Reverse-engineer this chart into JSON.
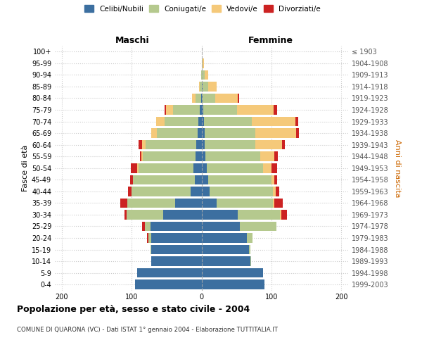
{
  "age_groups": [
    "0-4",
    "5-9",
    "10-14",
    "15-19",
    "20-24",
    "25-29",
    "30-34",
    "35-39",
    "40-44",
    "45-49",
    "50-54",
    "55-59",
    "60-64",
    "65-69",
    "70-74",
    "75-79",
    "80-84",
    "85-89",
    "90-94",
    "95-99",
    "100+"
  ],
  "birth_years": [
    "1999-2003",
    "1994-1998",
    "1989-1993",
    "1984-1988",
    "1979-1983",
    "1974-1978",
    "1969-1973",
    "1964-1968",
    "1959-1963",
    "1954-1958",
    "1949-1953",
    "1944-1948",
    "1939-1943",
    "1934-1938",
    "1929-1933",
    "1924-1928",
    "1919-1923",
    "1914-1918",
    "1909-1913",
    "1904-1908",
    "≤ 1903"
  ],
  "colors": {
    "celibi": "#3c6fa0",
    "coniugati": "#b5c98e",
    "vedovi": "#f5c97a",
    "divorziati": "#cc2222"
  },
  "males": {
    "celibi": [
      95,
      92,
      72,
      72,
      72,
      73,
      55,
      38,
      16,
      10,
      12,
      9,
      8,
      6,
      5,
      3,
      1,
      0,
      0,
      0,
      0
    ],
    "coniugati": [
      0,
      0,
      0,
      1,
      4,
      8,
      52,
      68,
      84,
      88,
      78,
      75,
      72,
      58,
      48,
      38,
      8,
      3,
      1,
      0,
      0
    ],
    "vedovi": [
      0,
      0,
      0,
      0,
      0,
      0,
      0,
      0,
      0,
      0,
      2,
      2,
      5,
      8,
      12,
      10,
      5,
      1,
      0,
      0,
      0
    ],
    "divorziati": [
      0,
      0,
      0,
      0,
      2,
      4,
      3,
      10,
      5,
      4,
      9,
      2,
      5,
      0,
      0,
      2,
      0,
      0,
      0,
      0,
      0
    ]
  },
  "females": {
    "celibi": [
      90,
      88,
      70,
      68,
      65,
      55,
      52,
      22,
      12,
      10,
      8,
      6,
      5,
      5,
      4,
      3,
      2,
      2,
      1,
      0,
      0
    ],
    "coniugati": [
      0,
      0,
      1,
      2,
      8,
      52,
      60,
      80,
      90,
      90,
      80,
      78,
      72,
      72,
      68,
      48,
      18,
      8,
      4,
      2,
      0
    ],
    "vedovi": [
      0,
      0,
      0,
      0,
      0,
      0,
      2,
      2,
      4,
      4,
      12,
      20,
      38,
      58,
      62,
      52,
      32,
      12,
      5,
      2,
      0
    ],
    "divorziati": [
      0,
      0,
      0,
      0,
      0,
      0,
      8,
      12,
      5,
      4,
      8,
      5,
      4,
      4,
      4,
      5,
      2,
      0,
      0,
      0,
      0
    ]
  },
  "xlim": 210,
  "title": "Popolazione per età, sesso e stato civile - 2004",
  "subtitle": "COMUNE DI QUARONA (VC) - Dati ISTAT 1° gennaio 2004 - Elaborazione TUTTITALIA.IT",
  "ylabel_left": "Fasce di età",
  "ylabel_right": "Anni di nascita",
  "xlabel_left": "Maschi",
  "xlabel_right": "Femmine",
  "bg_color": "#ffffff",
  "grid_color": "#cccccc",
  "bar_height": 0.82
}
